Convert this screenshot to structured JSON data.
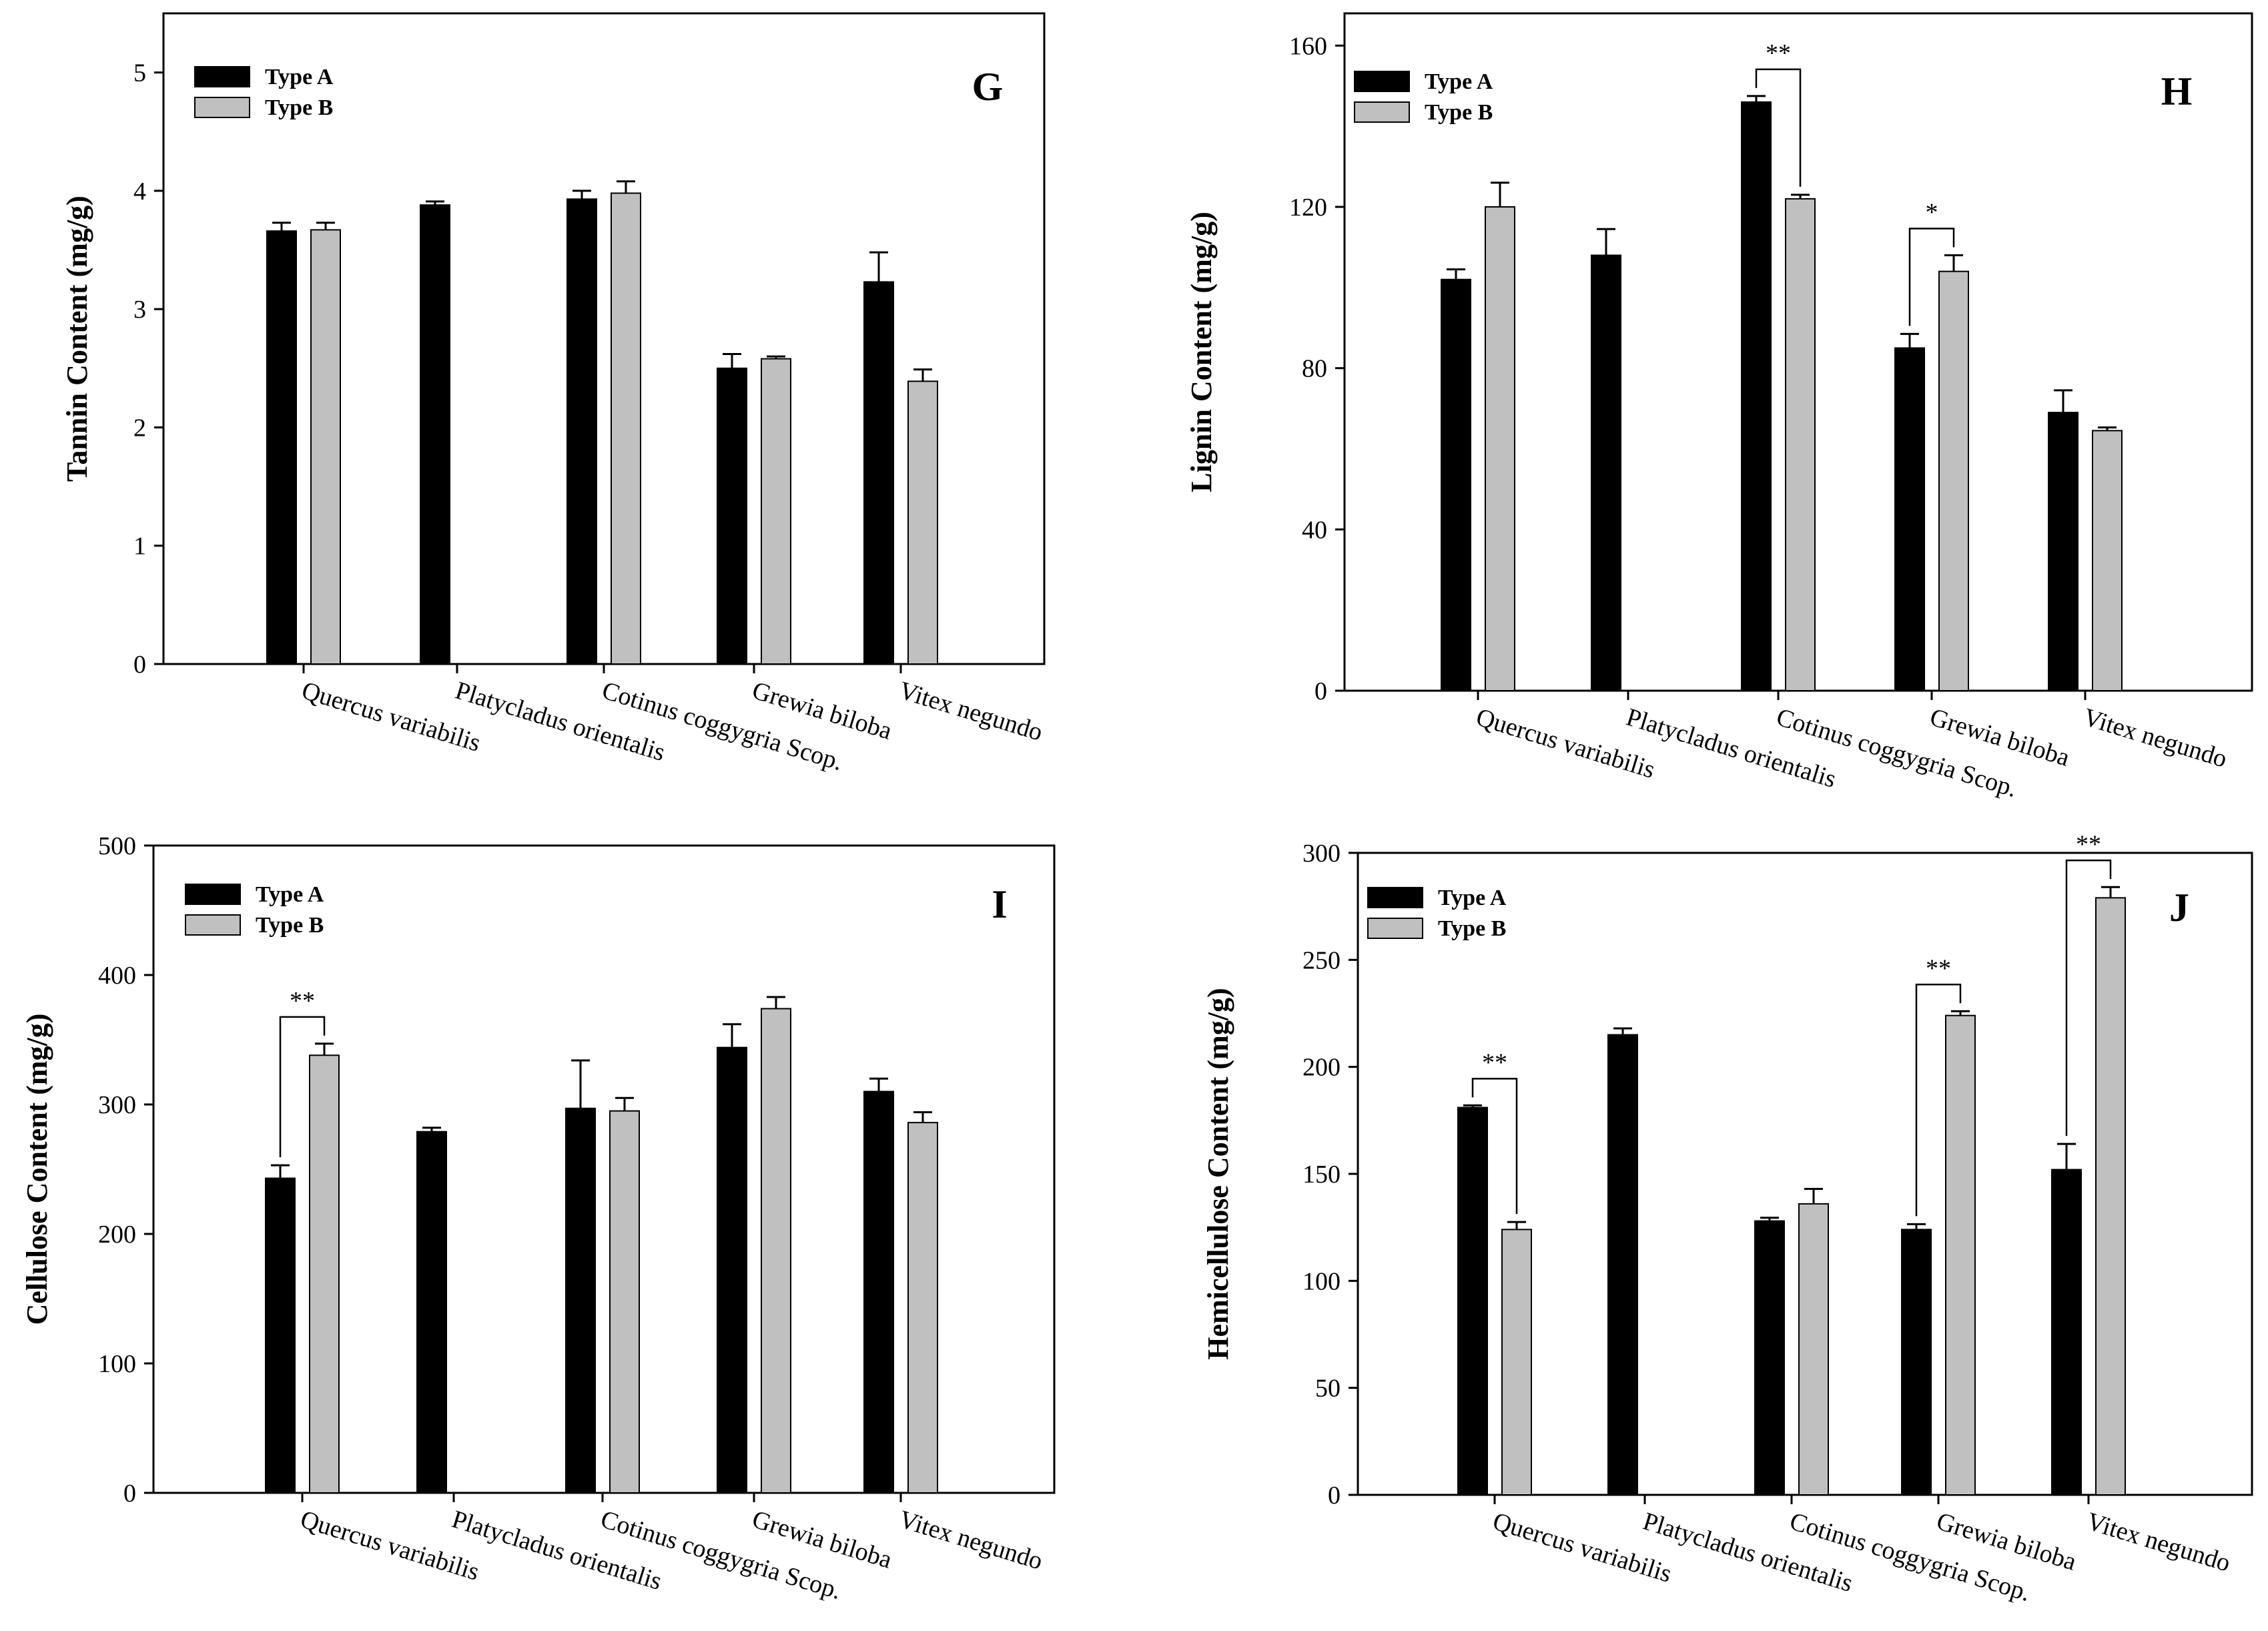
{
  "chart_data": [
    {
      "type": "bar",
      "panel_label": "G",
      "ylabel": "Tannin Content (mg/g)",
      "ylim": [
        0,
        5.5
      ],
      "yticks": [
        0,
        1,
        2,
        3,
        4,
        5
      ],
      "categories": [
        "Quercus variabilis",
        "Platycladus orientalis",
        "Cotinus coggygria Scop.",
        "Grewia biloba",
        "Vitex negundo"
      ],
      "legend": {
        "position": "top-left",
        "entries": [
          "Type A",
          "Type B"
        ]
      },
      "series": [
        {
          "name": "Type A",
          "color": "#000000",
          "values": [
            3.66,
            3.88,
            3.93,
            2.5,
            3.23
          ],
          "errors": [
            0.07,
            0.03,
            0.07,
            0.12,
            0.25
          ]
        },
        {
          "name": "Type B",
          "color": "#c0c0c0",
          "values": [
            3.67,
            null,
            3.98,
            2.58,
            2.39
          ],
          "errors": [
            0.06,
            null,
            0.1,
            0.02,
            0.1
          ]
        }
      ],
      "significance": []
    },
    {
      "type": "bar",
      "panel_label": "H",
      "ylabel": "Lignin Content (mg/g)",
      "ylim": [
        0,
        168
      ],
      "yticks": [
        0,
        40,
        80,
        120,
        160
      ],
      "categories": [
        "Quercus variabilis",
        "Platycladus orientalis",
        "Cotinus coggygria Scop.",
        "Grewia biloba",
        "Vitex negundo"
      ],
      "legend": {
        "position": "top-left",
        "entries": [
          "Type A",
          "Type B"
        ]
      },
      "series": [
        {
          "name": "Type A",
          "color": "#000000",
          "values": [
            102,
            108,
            146,
            85,
            69
          ],
          "errors": [
            2.5,
            6.5,
            1.5,
            3.5,
            5.5
          ]
        },
        {
          "name": "Type B",
          "color": "#c0c0c0",
          "values": [
            120,
            null,
            122,
            104,
            64.5
          ],
          "errors": [
            6,
            null,
            1,
            4,
            0.8
          ]
        }
      ],
      "significance": [
        {
          "category_index": 2,
          "label": "**"
        },
        {
          "category_index": 3,
          "label": "*"
        }
      ]
    },
    {
      "type": "bar",
      "panel_label": "I",
      "ylabel": "Cellulose Content (mg/g)",
      "ylim": [
        0,
        500
      ],
      "yticks": [
        0,
        100,
        200,
        300,
        400,
        500
      ],
      "categories": [
        "Quercus variabilis",
        "Platycladus orientalis",
        "Cotinus coggygria Scop.",
        "Grewia biloba",
        "Vitex negundo"
      ],
      "legend": {
        "position": "top-left",
        "entries": [
          "Type A",
          "Type B"
        ]
      },
      "series": [
        {
          "name": "Type A",
          "color": "#000000",
          "values": [
            243,
            279,
            297,
            344,
            310
          ],
          "errors": [
            10,
            3,
            37,
            18,
            10
          ]
        },
        {
          "name": "Type B",
          "color": "#c0c0c0",
          "values": [
            338,
            null,
            295,
            374,
            286
          ],
          "errors": [
            9,
            null,
            10,
            9,
            8
          ]
        }
      ],
      "significance": [
        {
          "category_index": 0,
          "label": "**"
        }
      ]
    },
    {
      "type": "bar",
      "panel_label": "J",
      "ylabel": "Hemicellulose Content (mg/g)",
      "ylim": [
        0,
        300
      ],
      "yticks": [
        0,
        50,
        100,
        150,
        200,
        250,
        300
      ],
      "categories": [
        "Quercus variabilis",
        "Platycladus orientalis",
        "Cotinus coggygria Scop.",
        "Grewia biloba",
        "Vitex negundo"
      ],
      "legend": {
        "position": "top-left",
        "entries": [
          "Type A",
          "Type B"
        ]
      },
      "series": [
        {
          "name": "Type A",
          "color": "#000000",
          "values": [
            181,
            215,
            128,
            124,
            152
          ],
          "errors": [
            1,
            3,
            1.5,
            2.5,
            12
          ]
        },
        {
          "name": "Type B",
          "color": "#c0c0c0",
          "values": [
            124,
            null,
            136,
            224,
            279
          ],
          "errors": [
            3.5,
            null,
            7,
            2,
            5
          ]
        }
      ],
      "significance": [
        {
          "category_index": 0,
          "label": "**"
        },
        {
          "category_index": 3,
          "label": "**"
        },
        {
          "category_index": 4,
          "label": "**"
        }
      ]
    }
  ]
}
